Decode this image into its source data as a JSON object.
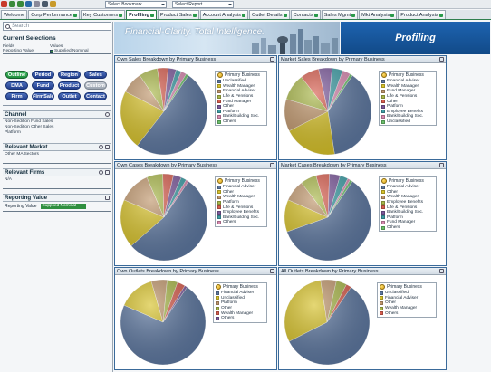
{
  "toolbar": {
    "bookmark_select": "Select Bookmark",
    "report_select": "Select Report",
    "icons": [
      "close-icon",
      "back-icon",
      "forward-icon",
      "refresh-icon",
      "home-icon",
      "print-icon",
      "settings-icon"
    ]
  },
  "tabs": [
    {
      "label": "Welcome",
      "active": false,
      "checked": false
    },
    {
      "label": "Corp Performance",
      "active": false,
      "checked": true
    },
    {
      "label": "Key Customers",
      "active": false,
      "checked": true
    },
    {
      "label": "Profiling",
      "active": true,
      "checked": true
    },
    {
      "label": "Product Sales",
      "active": false,
      "checked": true
    },
    {
      "label": "Account Analysis",
      "active": false,
      "checked": true
    },
    {
      "label": "Outlet Details",
      "active": false,
      "checked": true
    },
    {
      "label": "Contacts",
      "active": false,
      "checked": true
    },
    {
      "label": "Sales Mgmt",
      "active": false,
      "checked": true
    },
    {
      "label": "Mkt Analysis",
      "active": false,
      "checked": true
    },
    {
      "label": "Product Analysis",
      "active": false,
      "checked": true
    }
  ],
  "left": {
    "search_placeholder": "Search",
    "current_selections_title": "Current Selections",
    "selection_header": {
      "field": "Fields",
      "values": "Values"
    },
    "selections": [
      {
        "field": "Reporting Value",
        "value": "Supplied Nominal"
      }
    ],
    "buttons": [
      {
        "label": "Outline",
        "style": "green"
      },
      {
        "label": "Period",
        "style": "blue"
      },
      {
        "label": "Region",
        "style": "blue"
      },
      {
        "label": "Sales",
        "style": "blue"
      },
      {
        "label": "DMA",
        "style": "blue"
      },
      {
        "label": "Fund",
        "style": "blue"
      },
      {
        "label": "Product",
        "style": "blue"
      },
      {
        "label": "Custom",
        "style": "grey"
      },
      {
        "label": "Firm",
        "style": "blue"
      },
      {
        "label": "FirmSales",
        "style": "blue"
      },
      {
        "label": "Outlet",
        "style": "blue"
      },
      {
        "label": "Contact",
        "style": "blue"
      }
    ],
    "channel": {
      "title": "Channel",
      "items": [
        "Non-Sedition Fund Sales",
        "Non-Sedition Other Sales",
        "Platform"
      ]
    },
    "relevant_market": {
      "title": "Relevant Market",
      "items": [
        "Other MA Sectors"
      ]
    },
    "relevant_firms": {
      "title": "Relevant Firms",
      "items": [
        "N/A"
      ]
    },
    "reporting_value": {
      "title": "Reporting Value",
      "label": "Reporting Value",
      "value": "Supplied Nominal"
    }
  },
  "banner": {
    "tagline": "Financial-Clarity. Total Intelligence.",
    "section": "Profiling"
  },
  "colors": {
    "slate": "#5e78a0",
    "gold": "#d7c22b",
    "tan": "#c0976d",
    "olive": "#a9b74a",
    "red": "#d75e4f",
    "purple": "#7d5a9c",
    "teal": "#3f9ea6",
    "pink": "#d88ab0",
    "green": "#6abf6a",
    "blue": "#6f9ad8",
    "orange": "#e0a040"
  },
  "charts": [
    {
      "title": "Own Sales Breakdown by Primary Business",
      "legend_title": "Primary Business",
      "legend": [
        "Unclassified",
        "Wealth Manager",
        "Financial Adviser",
        "Life & Pensions",
        "Fund Manager",
        "Other",
        "Platform",
        "Bank/Building Soc.",
        "Others"
      ],
      "chart_data": {
        "type": "pie",
        "labels": [
          "Unclassified",
          "Wealth Manager",
          "Financial Adviser",
          "Life & Pensions",
          "Fund Manager",
          "Other",
          "Platform",
          "Bank/Building Soc.",
          "Others"
        ],
        "values": [
          51,
          22,
          8,
          7,
          4,
          3,
          2,
          2,
          1
        ]
      }
    },
    {
      "title": "Market Sales Breakdown by Primary Business",
      "legend_title": "Primary Business",
      "legend": [
        "Financial Adviser",
        "Wealth Manager",
        "Fund Manager",
        "Life & Pensions",
        "Other",
        "Platform",
        "Employee Benefits",
        "Bank/Building Soc.",
        "Unclassified"
      ],
      "chart_data": {
        "type": "pie",
        "labels": [
          "Financial Adviser",
          "Wealth Manager",
          "Fund Manager",
          "Life & Pensions",
          "Other",
          "Platform",
          "Employee Benefits",
          "Bank/Building Soc.",
          "Unclassified"
        ],
        "values": [
          38,
          20,
          12,
          10,
          7,
          5,
          4,
          3,
          1
        ]
      }
    },
    {
      "title": "Own Cases Breakdown by Primary Business",
      "legend_title": "Primary Business",
      "legend": [
        "Financial Adviser",
        "Other",
        "Wealth Manager",
        "Platform",
        "Life & Pensions",
        "Employee Benefits",
        "Bank/Building Soc.",
        "Others"
      ],
      "chart_data": {
        "type": "pie",
        "labels": [
          "Financial Adviser",
          "Other",
          "Wealth Manager",
          "Platform",
          "Life & Pensions",
          "Employee Benefits",
          "Bank/Building Soc.",
          "Others"
        ],
        "values": [
          54,
          18,
          12,
          6,
          4,
          3,
          2,
          1
        ]
      }
    },
    {
      "title": "Market Cases Breakdown by Primary Business",
      "legend_title": "Primary Business",
      "legend": [
        "Financial Adviser",
        "Other",
        "Wealth Manager",
        "Employee Benefits",
        "Life & Pensions",
        "Bank/Building Soc.",
        "Platform",
        "Fund Manager",
        "Others"
      ],
      "chart_data": {
        "type": "pie",
        "labels": [
          "Financial Adviser",
          "Other",
          "Wealth Manager",
          "Employee Benefits",
          "Life & Pensions",
          "Bank/Building Soc.",
          "Platform",
          "Fund Manager",
          "Others"
        ],
        "values": [
          60,
          12,
          8,
          6,
          5,
          4,
          3,
          1,
          1
        ]
      }
    },
    {
      "title": "Own Outlets Breakdown by Primary Business",
      "legend_title": "Primary Business",
      "legend": [
        "Financial Adviser",
        "Unclassified",
        "Platform",
        "Other",
        "Wealth Manager",
        "Others"
      ],
      "chart_data": {
        "type": "pie",
        "labels": [
          "Financial Adviser",
          "Unclassified",
          "Platform",
          "Other",
          "Wealth Manager",
          "Others"
        ],
        "values": [
          72,
          14,
          6,
          4,
          3,
          1
        ]
      }
    },
    {
      "title": "All Outlets Breakdown by Primary Business",
      "legend_title": "Primary Business",
      "legend": [
        "Unclassified",
        "Financial Adviser",
        "Other",
        "Wealth Manager",
        "Others"
      ],
      "chart_data": {
        "type": "pie",
        "labels": [
          "Unclassified",
          "Financial Adviser",
          "Other",
          "Wealth Manager",
          "Others"
        ],
        "values": [
          58,
          30,
          6,
          4,
          2
        ]
      }
    }
  ]
}
